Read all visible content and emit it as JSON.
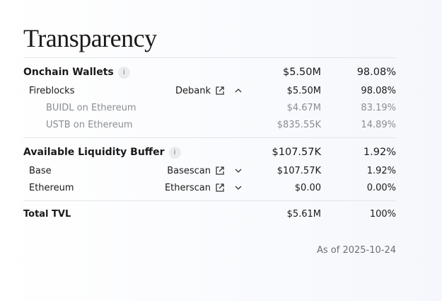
{
  "title": "Transparency",
  "onchain": {
    "label": "Onchain Wallets",
    "amount": "$5.50M",
    "pct": "98.08%",
    "rows": [
      {
        "name": "Fireblocks",
        "link": "Debank",
        "amount": "$5.50M",
        "pct": "98.08%",
        "chevron": "chevron-up-icon"
      }
    ],
    "subrows": [
      {
        "name": "BUIDL on Ethereum",
        "amount": "$4.67M",
        "pct": "83.19%"
      },
      {
        "name": "USTB on Ethereum",
        "amount": "$835.55K",
        "pct": "14.89%"
      }
    ]
  },
  "liquidity": {
    "label": "Available Liquidity Buffer",
    "amount": "$107.57K",
    "pct": "1.92%",
    "rows": [
      {
        "name": "Base",
        "link": "Basescan",
        "amount": "$107.57K",
        "pct": "1.92%",
        "chevron": "chevron-down-icon"
      },
      {
        "name": "Ethereum",
        "link": "Etherscan",
        "amount": "$0.00",
        "pct": "0.00%",
        "chevron": "chevron-down-icon"
      }
    ]
  },
  "total": {
    "label": "Total TVL",
    "amount": "$5.61M",
    "pct": "100%"
  },
  "as_of": "As of 2025-10-24"
}
